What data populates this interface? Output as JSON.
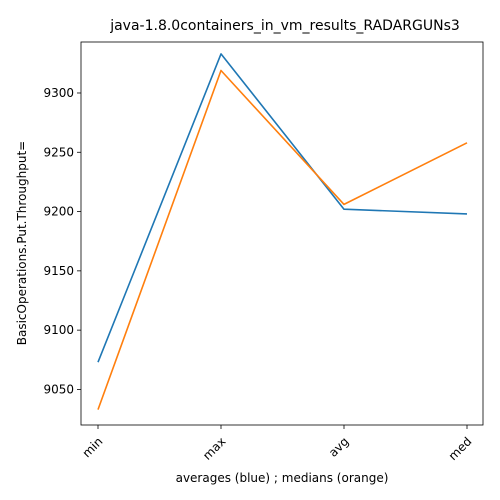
{
  "chart_data": {
    "type": "line",
    "title": "java-1.8.0containers_in_vm_results_RADARGUNs3",
    "xlabel": "averages (blue) ; medians (orange)",
    "ylabel": "BasicOperations.Put.Throughput=",
    "categories": [
      "min",
      "max",
      "avg",
      "med"
    ],
    "ylim": [
      9020,
      9343
    ],
    "yticks": [
      9050,
      9100,
      9150,
      9200,
      9250,
      9300
    ],
    "series": [
      {
        "color": "#1f77b4",
        "values": [
          9073,
          9333,
          9202,
          9198
        ]
      },
      {
        "color": "#ff7f0e",
        "values": [
          9033,
          9319,
          9206,
          9258
        ]
      }
    ],
    "grid": false,
    "legend": "none"
  }
}
